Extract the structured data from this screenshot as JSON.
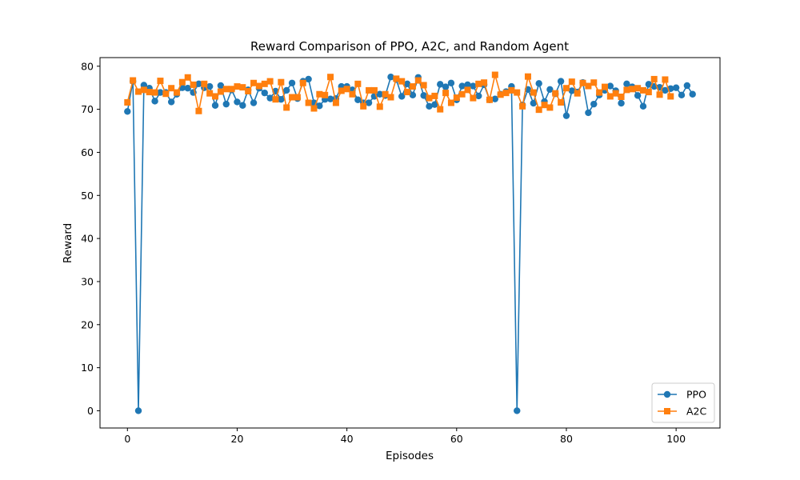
{
  "chart_data": {
    "type": "line",
    "title": "Reward Comparison of PPO, A2C, and Random Agent",
    "xlabel": "Episodes",
    "ylabel": "Reward",
    "xlim": [
      -5,
      108
    ],
    "ylim": [
      -4,
      82
    ],
    "xticks": [
      0,
      20,
      40,
      60,
      80,
      100
    ],
    "yticks": [
      0,
      10,
      20,
      30,
      40,
      50,
      60,
      70,
      80
    ],
    "grid": false,
    "legend_position": "lower-right",
    "series": [
      {
        "name": "PPO",
        "color": "#1f77b4",
        "marker": "circle",
        "values": [
          69.5,
          76.5,
          0,
          75.6,
          74.9,
          71.9,
          73.9,
          73.9,
          71.7,
          73.5,
          75.0,
          74.9,
          73.9,
          75.9,
          75.0,
          75.3,
          70.9,
          75.5,
          71.2,
          74.5,
          71.7,
          70.9,
          74.5,
          71.5,
          74.9,
          73.8,
          72.6,
          74.2,
          72.3,
          74.4,
          76.1,
          72.5,
          76.5,
          77.0,
          71.5,
          70.8,
          72.3,
          72.4,
          72.5,
          75.3,
          75.3,
          74.5,
          72.2,
          71.5,
          71.5,
          73.0,
          73.5,
          73.2,
          77.5,
          76.9,
          73.0,
          75.9,
          73.3,
          77.4,
          73.2,
          70.7,
          71.1,
          75.8,
          75.2,
          76.1,
          72.2,
          75.4,
          75.7,
          75.4,
          73.1,
          75.7,
          72.2,
          72.4,
          73.5,
          74.1,
          75.3,
          0,
          71.0,
          74.6,
          71.4,
          76.0,
          71.8,
          74.6,
          73.6,
          76.5,
          68.5,
          74.3,
          74.0,
          76.2,
          69.2,
          71.2,
          73.3,
          74.4,
          75.4,
          74.3,
          71.4,
          75.9,
          75.2,
          73.2,
          70.7,
          75.8,
          75.3,
          75.1,
          74.4,
          74.8,
          75.0,
          73.3,
          75.5,
          73.5
        ]
      },
      {
        "name": "A2C",
        "color": "#ff7f0e",
        "marker": "square",
        "values": [
          71.6,
          76.7,
          74.1,
          74.5,
          74.0,
          73.9,
          76.6,
          73.6,
          74.9,
          73.9,
          76.3,
          77.4,
          75.7,
          69.6,
          75.9,
          73.7,
          73.0,
          74.1,
          74.7,
          74.7,
          75.3,
          75.1,
          74.2,
          76.1,
          75.4,
          75.9,
          76.5,
          72.3,
          76.3,
          70.4,
          72.8,
          72.8,
          76.1,
          71.5,
          70.2,
          73.5,
          73.3,
          77.5,
          71.5,
          74.3,
          74.7,
          73.5,
          75.9,
          70.7,
          74.4,
          74.4,
          70.6,
          73.5,
          72.8,
          77.1,
          76.5,
          74.0,
          75.3,
          76.7,
          75.6,
          72.6,
          73.1,
          70.0,
          73.8,
          71.5,
          72.7,
          73.5,
          74.5,
          72.6,
          75.9,
          76.2,
          72.2,
          78.0,
          73.4,
          73.8,
          74.4,
          73.9,
          70.7,
          77.6,
          73.9,
          69.9,
          71.0,
          70.4,
          73.7,
          71.6,
          74.9,
          76.4,
          73.7,
          76.1,
          75.4,
          76.2,
          73.9,
          75.2,
          73.0,
          73.7,
          72.9,
          74.5,
          74.7,
          74.9,
          74.4,
          74.0,
          77.0,
          73.4,
          76.9,
          73.0
        ]
      }
    ]
  }
}
